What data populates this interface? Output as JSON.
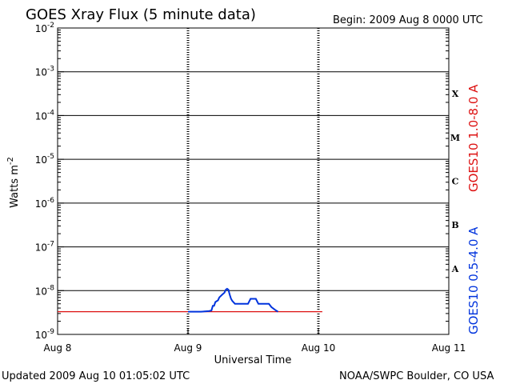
{
  "header": {
    "title": "GOES Xray Flux (5 minute data)",
    "begin": "Begin:  2009 Aug 8 0000 UTC"
  },
  "footer": {
    "updated": "Updated 2009 Aug 10 01:05:02 UTC",
    "credit": "NOAA/SWPC Boulder, CO USA"
  },
  "chart_data": {
    "type": "line",
    "xlabel": "Universal Time",
    "ylabel_base": "Watts m",
    "ylabel_exp": "-2",
    "x_ticks": [
      "Aug 8",
      "Aug 9",
      "Aug 10",
      "Aug 11"
    ],
    "x_range_days": [
      0,
      3
    ],
    "y_log": true,
    "y_ticks_exponents": [
      -9,
      -8,
      -7,
      -6,
      -5,
      -4,
      -3,
      -2
    ],
    "y_tick_base": "10",
    "ylim": [
      1e-09,
      0.01
    ],
    "flare_classes": [
      {
        "label": "A",
        "exponent": -8
      },
      {
        "label": "B",
        "exponent": -7
      },
      {
        "label": "C",
        "exponent": -6
      },
      {
        "label": "M",
        "exponent": -5
      },
      {
        "label": "X",
        "exponent": -4
      }
    ],
    "series": [
      {
        "name": "GOES10 1.0-8.0 A",
        "color": "#dd1111",
        "points": [
          [
            0.0,
            3.3e-09
          ],
          [
            1.0,
            3.3e-09
          ],
          [
            1.5,
            3.3e-09
          ],
          [
            2.03,
            3.3e-09
          ]
        ]
      },
      {
        "name": "GOES10 0.5-4.0 A",
        "color": "#0033dd",
        "points": [
          [
            1.0,
            3.3e-09
          ],
          [
            1.1,
            3.3e-09
          ],
          [
            1.16,
            3.4e-09
          ],
          [
            1.18,
            3.5e-09
          ],
          [
            1.19,
            4.5e-09
          ],
          [
            1.2,
            4.5e-09
          ],
          [
            1.21,
            5.5e-09
          ],
          [
            1.23,
            6e-09
          ],
          [
            1.24,
            7e-09
          ],
          [
            1.26,
            8e-09
          ],
          [
            1.28,
            9e-09
          ],
          [
            1.29,
            1.05e-08
          ],
          [
            1.3,
            1.1e-08
          ],
          [
            1.31,
            1.05e-08
          ],
          [
            1.32,
            8e-09
          ],
          [
            1.33,
            6.5e-09
          ],
          [
            1.34,
            5.8e-09
          ],
          [
            1.36,
            5e-09
          ],
          [
            1.4,
            5e-09
          ],
          [
            1.46,
            5e-09
          ],
          [
            1.48,
            6.5e-09
          ],
          [
            1.52,
            6.5e-09
          ],
          [
            1.54,
            5e-09
          ],
          [
            1.62,
            5e-09
          ],
          [
            1.64,
            4.2e-09
          ],
          [
            1.67,
            3.6e-09
          ],
          [
            1.69,
            3.3e-09
          ]
        ]
      }
    ]
  }
}
